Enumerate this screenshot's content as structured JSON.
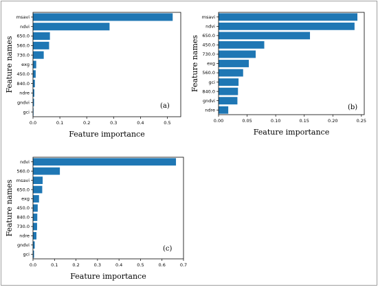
{
  "chart_data": [
    {
      "type": "bar",
      "orientation": "horizontal",
      "panel_label": "(a)",
      "xlabel": "Feature importance",
      "ylabel": "Feature names",
      "xlim": [
        0,
        0.55
      ],
      "xticks": [
        "0.0",
        "0.1",
        "0.2",
        "0.3",
        "0.4",
        "0.5"
      ],
      "categories": [
        "msavi",
        "ndvi",
        "650.0",
        "560.0",
        "730.0",
        "exg",
        "450.0",
        "840.0",
        "ndre",
        "gndvi",
        "gci"
      ],
      "values": [
        0.52,
        0.285,
        0.063,
        0.06,
        0.04,
        0.012,
        0.01,
        0.007,
        0.005,
        0.004,
        0.002
      ],
      "bar_color": "#1f77b4"
    },
    {
      "type": "bar",
      "orientation": "horizontal",
      "panel_label": "(b)",
      "xlabel": "Feature importance",
      "ylabel": "Feature names",
      "xlim": [
        0,
        0.255
      ],
      "xticks": [
        "0.00",
        "0.05",
        "0.10",
        "0.15",
        "0.20",
        "0.25"
      ],
      "categories": [
        "msavi",
        "ndvi",
        "650.0",
        "450.0",
        "730.0",
        "exg",
        "560.0",
        "gci",
        "840.0",
        "gndvi",
        "ndre"
      ],
      "values": [
        0.243,
        0.238,
        0.16,
        0.08,
        0.065,
        0.053,
        0.043,
        0.035,
        0.034,
        0.033,
        0.017
      ],
      "bar_color": "#1f77b4"
    },
    {
      "type": "bar",
      "orientation": "horizontal",
      "panel_label": "(c)",
      "xlabel": "Feature importance",
      "ylabel": "Feature names",
      "xlim": [
        0,
        0.7
      ],
      "xticks": [
        "0.0",
        "0.1",
        "0.2",
        "0.3",
        "0.4",
        "0.5",
        "0.6",
        "0.7"
      ],
      "categories": [
        "ndvi",
        "560.0",
        "msavi",
        "650.0",
        "exg",
        "450.0",
        "840.0",
        "730.0",
        "ndre",
        "gndvi",
        "gci"
      ],
      "values": [
        0.665,
        0.125,
        0.045,
        0.043,
        0.028,
        0.022,
        0.02,
        0.019,
        0.016,
        0.008,
        0.005
      ],
      "bar_color": "#1f77b4"
    }
  ]
}
